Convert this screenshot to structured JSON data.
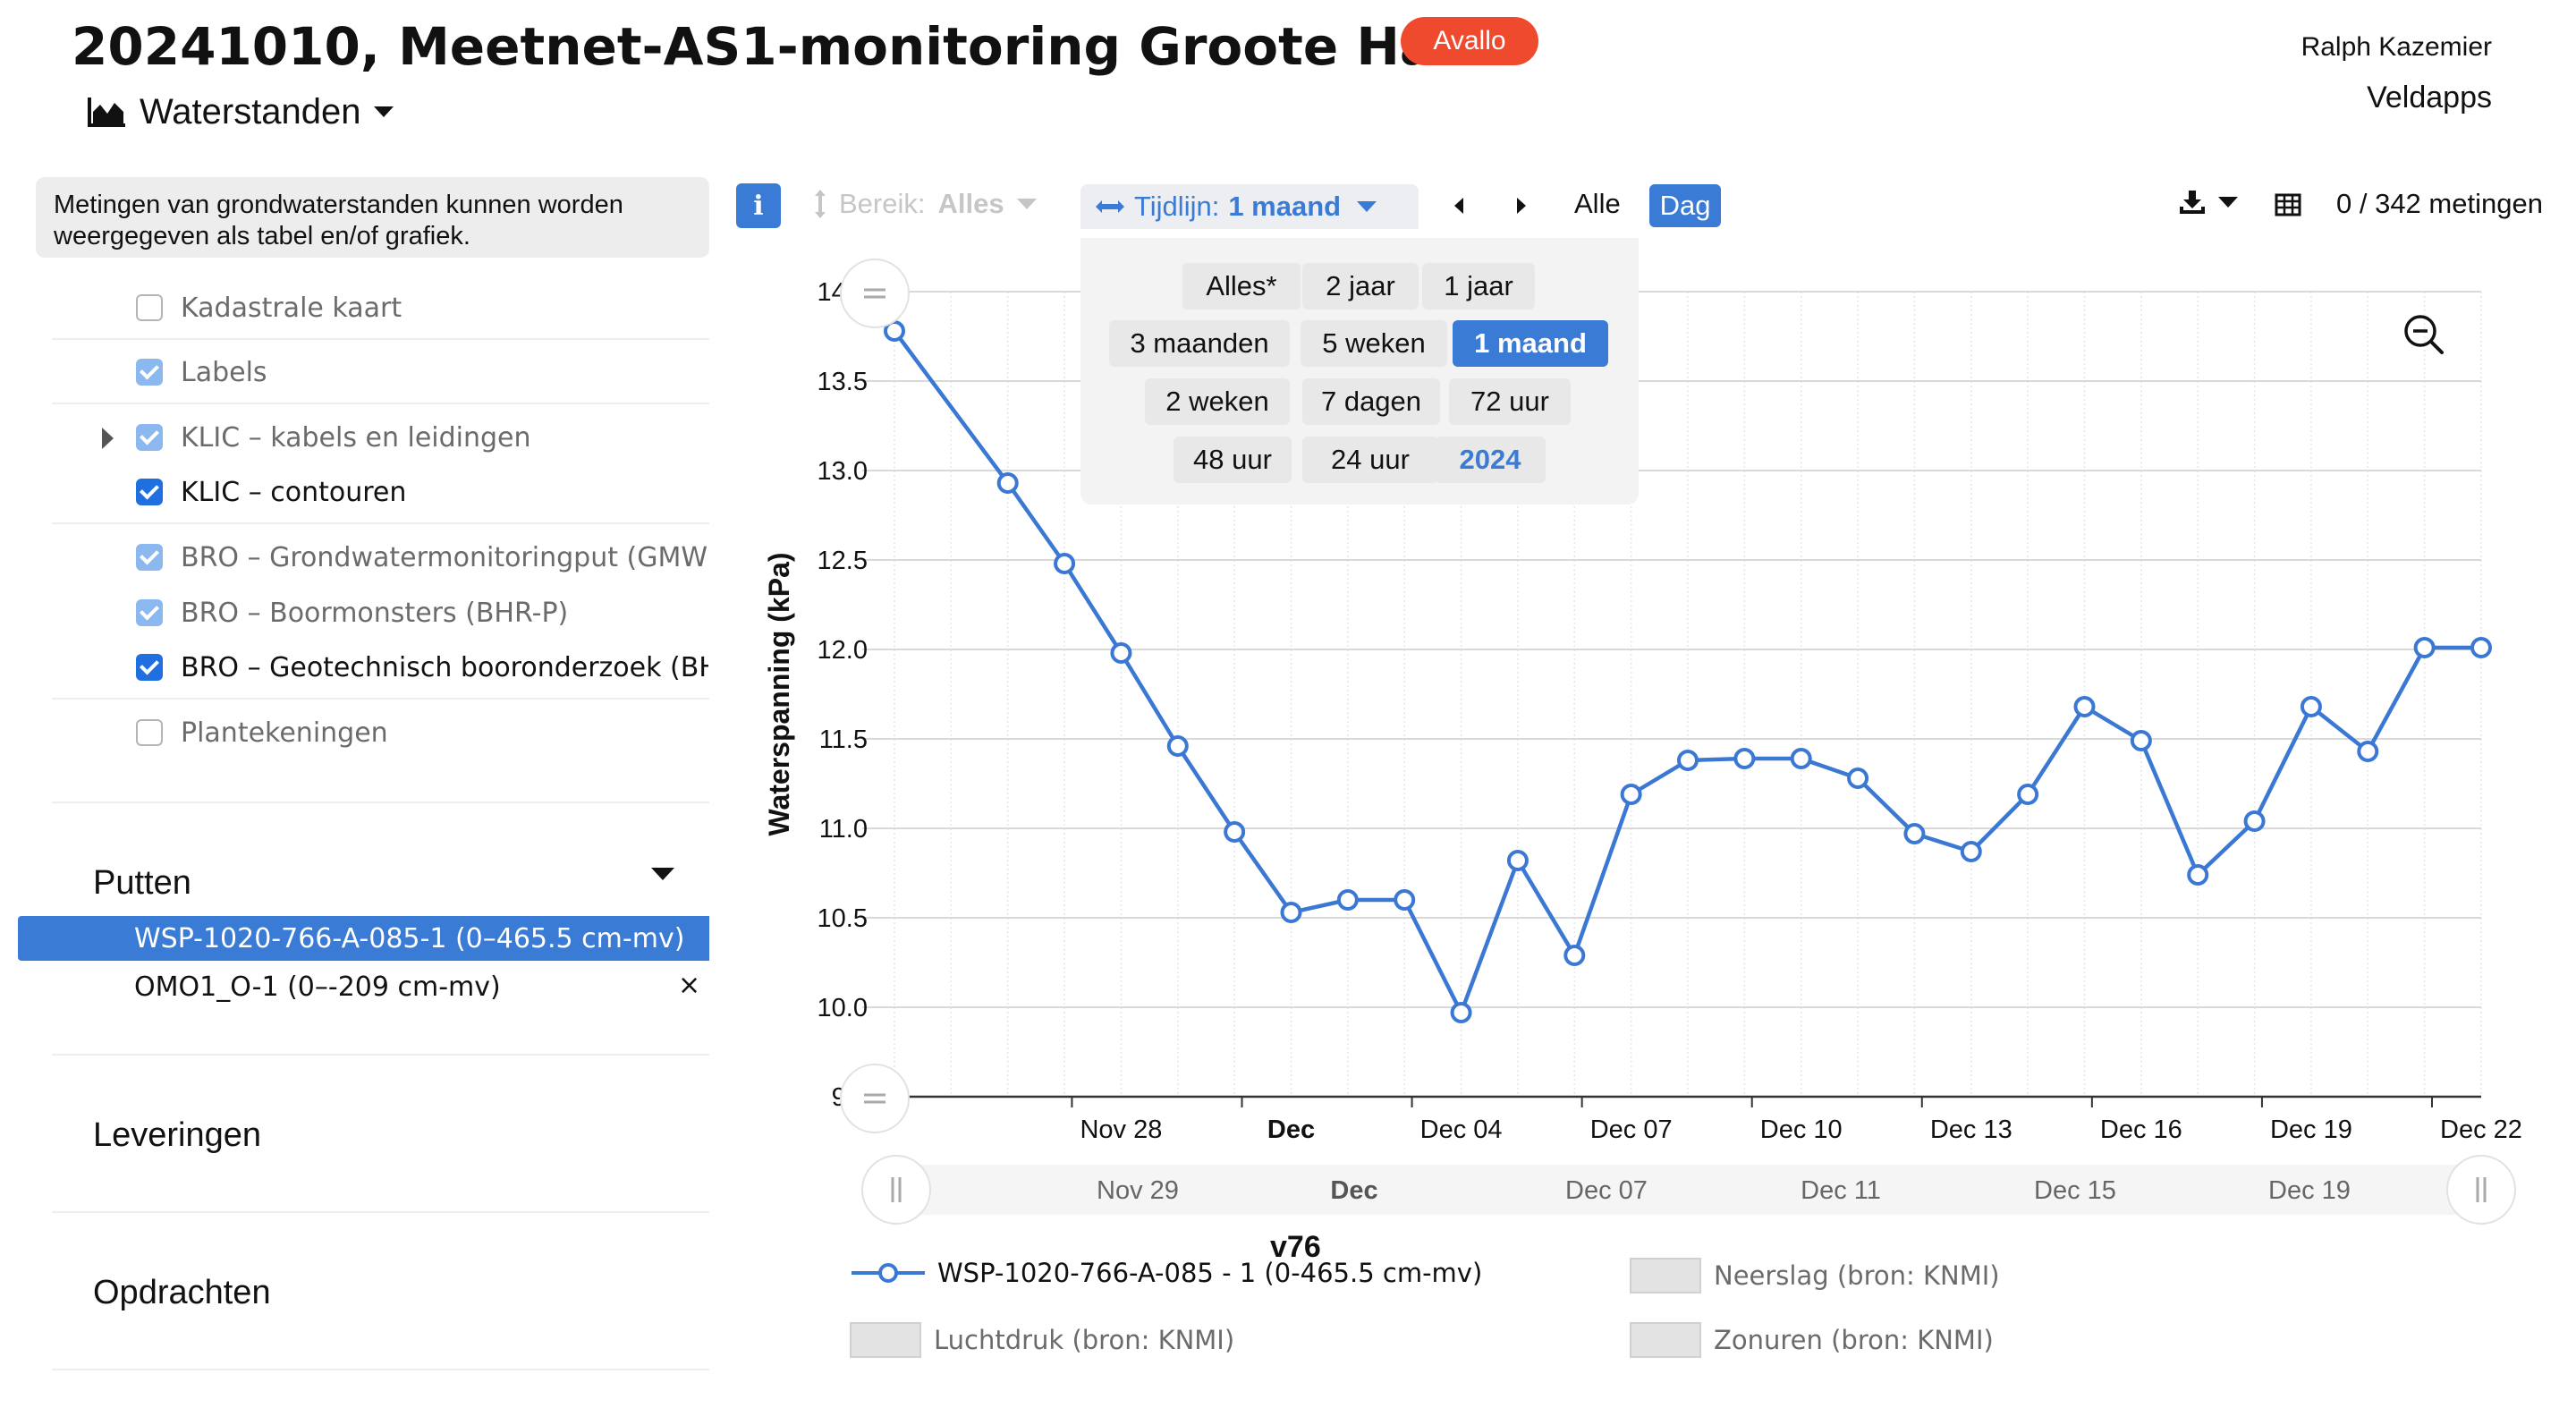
{
  "header": {
    "title": "20241010, Meetnet-AS1-monitoring Groote Haar",
    "badge": "Avallo",
    "user_name": "Ralph Kazemier",
    "app_name": "Veldapps",
    "view_selector": "Waterstanden"
  },
  "sidebar": {
    "info_text": "Metingen van grondwaterstanden kunnen worden weergegeven als tabel en/of grafiek.",
    "layers": [
      {
        "label": "Kadastrale kaart",
        "state": "unchecked"
      },
      {
        "label": "Labels",
        "state": "checked-disabled"
      },
      {
        "label": "KLIC – kabels en leidingen",
        "state": "checked-disabled"
      },
      {
        "label": "KLIC – contouren",
        "state": "checked"
      },
      {
        "label": "BRO – Grondwatermonitoringput (GMW)",
        "state": "checked-disabled"
      },
      {
        "label": "BRO – Boormonsters (BHR-P)",
        "state": "checked-disabled"
      },
      {
        "label": "BRO – Geotechnisch booronderzoek (BHR-GT)",
        "state": "checked"
      },
      {
        "label": "Plantekeningen",
        "state": "unchecked"
      }
    ],
    "putten_title": "Putten",
    "putten": [
      {
        "label": "WSP-1020-766-A-085-1 (0–465.5 cm-mv)",
        "selected": true
      },
      {
        "label": "OMO1_O-1 (0–-209 cm-mv)",
        "selected": false
      }
    ],
    "close_symbol": "×",
    "leveringen_title": "Leveringen",
    "opdrachten_title": "Opdrachten"
  },
  "toolbar": {
    "info_icon": "i",
    "bereik_label": "Bereik:",
    "bereik_value": "Alles",
    "tijdlijn_label": "Tijdlijn:",
    "tijdlijn_value": "1 maand",
    "alle_label": "Alle",
    "dag_label": "Dag",
    "count_text": "0 / 342 metingen"
  },
  "timeline_options": [
    [
      "Alles*",
      "2 jaar",
      "1 jaar"
    ],
    [
      "3 maanden",
      "5 weken",
      "1 maand"
    ],
    [
      "2 weken",
      "7 dagen",
      "72 uur"
    ],
    [
      "48 uur",
      "24 uur",
      "2024"
    ]
  ],
  "timeline_selected": "1 maand",
  "icons": {
    "view": "area-chart-icon",
    "range": "vertical-arrows-icon",
    "timeline": "horizontal-arrows-icon",
    "download": "download-icon",
    "table": "table-icon",
    "zoom_out": "zoom-out-icon"
  },
  "colors": {
    "accent": "#3a7bd5",
    "badge": "#ef4a2e",
    "series": "#3b78d4"
  },
  "chart_data": {
    "type": "line",
    "title": "",
    "ylabel": "Waterspanning (kPa)",
    "xlabel": "",
    "ylim": [
      9.5,
      14.0
    ],
    "y_ticks": [
      "14.0",
      "13.5",
      "13.0",
      "12.5",
      "12.0",
      "11.5",
      "11.0",
      "10.5",
      "10.0",
      "9.5"
    ],
    "x_tick_labels": [
      "Nov 28",
      "Dec",
      "Dec 04",
      "Dec 07",
      "Dec 10",
      "Dec 13",
      "Dec 16",
      "Dec 19",
      "Dec 22"
    ],
    "navigator_labels": [
      "Nov 29",
      "Dec",
      "Dec 07",
      "Dec 11",
      "Dec 15",
      "Dec 19"
    ],
    "grid": true,
    "series": [
      {
        "name": "WSP-1020-766-A-085 - 1 (0-465.5 cm-mv)",
        "x": [
          "2024-11-24",
          "2024-11-26",
          "2024-11-27",
          "2024-11-28",
          "2024-11-29",
          "2024-11-30",
          "2024-12-01",
          "2024-12-02",
          "2024-12-03",
          "2024-12-04",
          "2024-12-05",
          "2024-12-06",
          "2024-12-07",
          "2024-12-08",
          "2024-12-09",
          "2024-12-10",
          "2024-12-11",
          "2024-12-12",
          "2024-12-13",
          "2024-12-14",
          "2024-12-15",
          "2024-12-16",
          "2024-12-17",
          "2024-12-18",
          "2024-12-19",
          "2024-12-20",
          "2024-12-21",
          "2024-12-22"
        ],
        "values": [
          13.78,
          12.93,
          12.48,
          11.98,
          11.46,
          10.98,
          10.53,
          10.6,
          10.6,
          9.97,
          10.82,
          10.29,
          11.19,
          11.38,
          11.39,
          11.39,
          11.28,
          10.97,
          10.87,
          11.19,
          11.68,
          11.49,
          10.74,
          11.04,
          11.68,
          11.43,
          12.01,
          12.01
        ]
      }
    ],
    "version": "v76",
    "legend": [
      {
        "name": "WSP-1020-766-A-085 - 1 (0-465.5 cm-mv)",
        "active": true
      },
      {
        "name": "Neerslag (bron: KNMI)",
        "active": false
      },
      {
        "name": "Luchtdruk (bron: KNMI)",
        "active": false
      },
      {
        "name": "Zonuren (bron: KNMI)",
        "active": false
      }
    ],
    "legend_position": "bottom"
  }
}
